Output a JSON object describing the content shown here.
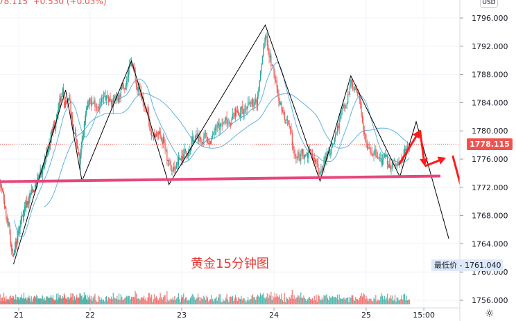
{
  "header": {
    "quote_visible": "78.115  +0.530 (+0.03%)"
  },
  "currency_button": "USD",
  "caption": "黄金15分钟图",
  "low_marker": {
    "label": "最低价",
    "value": "1761.040"
  },
  "last_price_label": "1778.115",
  "settings_icon": "gear-icon",
  "colors": {
    "up": "#26a69a",
    "down": "#ef5350",
    "support_line": "#e8457a",
    "arrows": "#ff1a1a",
    "zigzag": "#000000",
    "ma": "#5fb3e0",
    "last_price": "#ef5350"
  },
  "chart_data": {
    "type": "candlestick",
    "title": "",
    "ylim": [
      1755.5,
      1798.5
    ],
    "y_ticks": [
      "1796.000",
      "1792.000",
      "1788.000",
      "1784.000",
      "1780.000",
      "1776.000",
      "1772.000",
      "1768.000",
      "1764.000",
      "1760.000",
      "1756.000"
    ],
    "x_ticks": [
      {
        "label": "21",
        "t": "21 00:00"
      },
      {
        "label": "22",
        "t": "22 00:00"
      },
      {
        "label": "23",
        "t": "23 00:00"
      },
      {
        "label": "24",
        "t": "24 00:00"
      },
      {
        "label": "25",
        "t": "25 00:00"
      },
      {
        "label": "15:00",
        "t": "25 15:00"
      }
    ],
    "grid": true,
    "interval": "15m",
    "last_price": 1778.115,
    "change": 0.53,
    "change_pct": 0.03,
    "low": 1761.04,
    "price_path": [
      [
        "20 17:45",
        1773.1
      ],
      [
        "20 22:15",
        1761.8
      ],
      [
        "21 01:45",
        1769.1
      ],
      [
        "21 07:45",
        1774.0
      ],
      [
        "21 14:45",
        1784.8
      ],
      [
        "21 17:00",
        1783.8
      ],
      [
        "21 20:30",
        1775.0
      ],
      [
        "21 22:45",
        1783.8
      ],
      [
        "22 03:30",
        1784.3
      ],
      [
        "22 07:15",
        1784.8
      ],
      [
        "22 10:45",
        1789.2
      ],
      [
        "22 13:30",
        1784.8
      ],
      [
        "22 16:15",
        1778.9
      ],
      [
        "22 19:00",
        1778.9
      ],
      [
        "22 20:45",
        1774.0
      ],
      [
        "22 23:30",
        1776.0
      ],
      [
        "23 03:15",
        1778.9
      ],
      [
        "23 06:45",
        1778.5
      ],
      [
        "23 10:30",
        1780.9
      ],
      [
        "23 15:00",
        1782.9
      ],
      [
        "23 19:30",
        1783.8
      ],
      [
        "23 21:45",
        1793.6
      ],
      [
        "24 00:00",
        1787.8
      ],
      [
        "24 02:45",
        1781.9
      ],
      [
        "24 05:30",
        1776.0
      ],
      [
        "24 09:00",
        1777.0
      ],
      [
        "24 11:45",
        1774.5
      ],
      [
        "24 14:30",
        1777.0
      ],
      [
        "24 17:15",
        1781.9
      ],
      [
        "24 20:00",
        1786.8
      ],
      [
        "24 21:45",
        1784.8
      ],
      [
        "25 00:15",
        1778.9
      ],
      [
        "25 03:00",
        1776.0
      ],
      [
        "25 05:45",
        1775.0
      ],
      [
        "25 08:30",
        1775.0
      ],
      [
        "25 11:15",
        1778.115
      ]
    ],
    "moving_averages": [
      20,
      60
    ],
    "zigzag": [
      [
        "20 22:15",
        1761.1
      ],
      [
        "21 15:45",
        1785.8
      ],
      [
        "21 21:15",
        1772.9
      ],
      [
        "22 10:45",
        1789.9
      ],
      [
        "22 20:30",
        1772.4
      ],
      [
        "23 21:45",
        1795.0
      ],
      [
        "24 12:00",
        1772.9
      ],
      [
        "24 20:00",
        1787.8
      ],
      [
        "25 08:45",
        1773.5
      ],
      [
        "25 13:00",
        1781.3
      ],
      [
        "25 21:30",
        1764.7
      ]
    ],
    "support_line": [
      [
        "20 17:45",
        1772.8
      ],
      [
        "25 19:00",
        1773.6
      ]
    ],
    "arrows": [
      [
        [
          "25 08:30",
          1775.2
        ],
        [
          "25 14:00",
          1780.1
        ]
      ],
      [
        [
          "25 14:00",
          1780.1
        ],
        [
          "25 15:15",
          1775.0
        ]
      ],
      [
        [
          "25 15:15",
          1775.0
        ],
        [
          "25 20:45",
          1776.2
        ]
      ],
      [
        [
          "25 22:30",
          1776.5
        ],
        [
          "26 05:15",
          1762.8
        ]
      ]
    ]
  }
}
